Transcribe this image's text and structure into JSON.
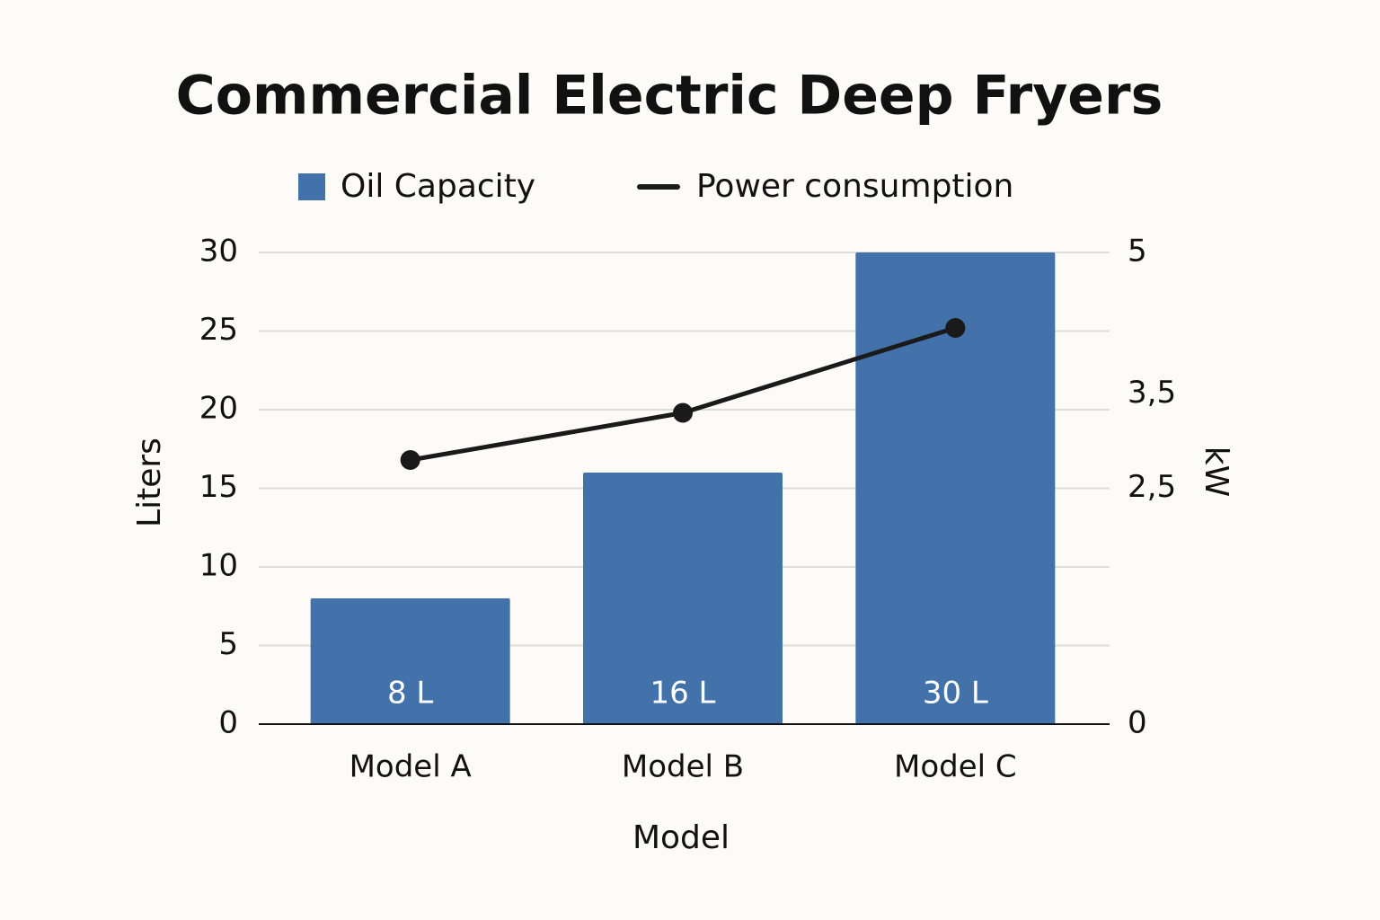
{
  "chart_data": {
    "type": "bar_line",
    "title": "Commercial Electric Deep Fryers",
    "x_label": "Model",
    "y_label": "Liters",
    "y2_label": "kW",
    "categories": [
      "Model A",
      "Model B",
      "Model C"
    ],
    "series": [
      {
        "name": "Oil Capacity",
        "type": "bar",
        "color": "#4272a9",
        "values": [
          8,
          16,
          30
        ],
        "value_labels": [
          "8 L",
          "16 L",
          "30 L"
        ]
      },
      {
        "name": "Power consumption",
        "type": "line",
        "axis": "y2",
        "color": "#1a1a1a",
        "values": [
          2.8,
          3.3,
          4.2
        ]
      }
    ],
    "ylim": [
      0,
      30
    ],
    "yticks": [
      0,
      5,
      10,
      15,
      20,
      25,
      30
    ],
    "y2lim": [
      0,
      5
    ],
    "y2ticks": [
      0,
      {
        "value": 2.5,
        "label": "2,5"
      },
      {
        "value": 3.5,
        "label": "3,5"
      },
      5
    ],
    "grid": true,
    "legend": "top"
  }
}
